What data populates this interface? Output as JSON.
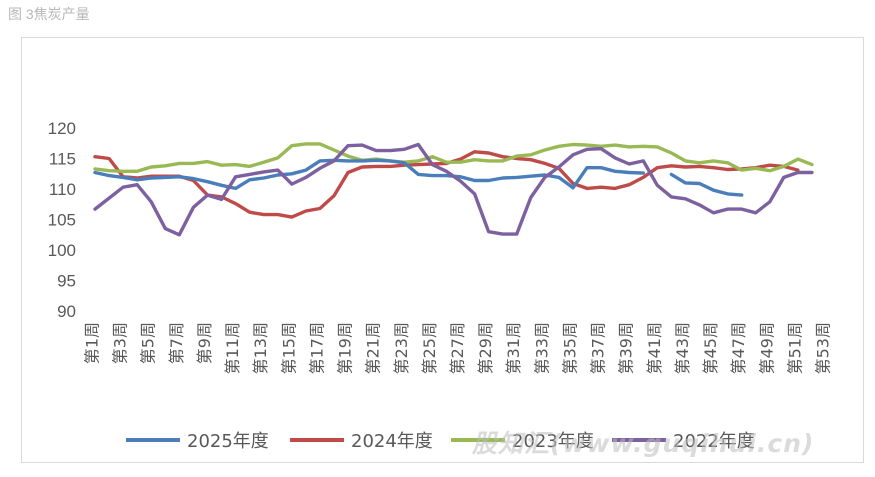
{
  "figure_title": "图 3焦炭产量",
  "watermark": "股知汇(www.guqihui.cn)",
  "chart_data": {
    "type": "line",
    "title": "",
    "xlabel": "",
    "ylabel": "",
    "ylim": [
      90,
      120
    ],
    "yticks": [
      90,
      95,
      100,
      105,
      110,
      115,
      120
    ],
    "grid": false,
    "legend": "bottom",
    "categories": [
      "第1周",
      "第2周",
      "第3周",
      "第4周",
      "第5周",
      "第6周",
      "第7周",
      "第8周",
      "第9周",
      "第10周",
      "第11周",
      "第12周",
      "第13周",
      "第14周",
      "第15周",
      "第16周",
      "第17周",
      "第18周",
      "第19周",
      "第20周",
      "第21周",
      "第22周",
      "第23周",
      "第24周",
      "第25周",
      "第26周",
      "第27周",
      "第28周",
      "第29周",
      "第30周",
      "第31周",
      "第32周",
      "第33周",
      "第34周",
      "第35周",
      "第36周",
      "第37周",
      "第38周",
      "第39周",
      "第40周",
      "第41周",
      "第42周",
      "第43周",
      "第44周",
      "第45周",
      "第46周",
      "第47周",
      "第48周",
      "第49周",
      "第50周",
      "第51周",
      "第52周",
      "第53周"
    ],
    "tick_labels": [
      "第1周",
      "第3周",
      "第5周",
      "第7周",
      "第9周",
      "第11周",
      "第13周",
      "第15周",
      "第17周",
      "第19周",
      "第21周",
      "第23周",
      "第25周",
      "第27周",
      "第29周",
      "第31周",
      "第33周",
      "第35周",
      "第37周",
      "第39周",
      "第41周",
      "第43周",
      "第45周",
      "第47周",
      "第49周",
      "第51周",
      "第53周"
    ],
    "series": [
      {
        "name": "2025年度",
        "color": "#4a7ebb",
        "values": [
          112.7,
          112.2,
          111.9,
          111.5,
          111.8,
          111.9,
          112.0,
          111.7,
          111.2,
          110.6,
          110.1,
          111.5,
          111.8,
          112.3,
          112.5,
          113.1,
          114.6,
          114.7,
          114.6,
          114.6,
          114.7,
          114.6,
          114.3,
          112.4,
          112.2,
          112.2,
          112.0,
          111.4,
          111.4,
          111.8,
          111.9,
          112.1,
          112.3,
          111.9,
          110.2,
          113.5,
          113.5,
          112.9,
          112.7,
          112.6,
          null,
          112.4,
          111.0,
          110.9,
          109.8,
          109.2,
          109.0,
          null,
          null,
          null,
          null,
          null,
          null
        ]
      },
      {
        "name": "2024年度",
        "color": "#be4b48",
        "values": [
          115.3,
          115.0,
          112.0,
          111.8,
          112.1,
          112.1,
          112.1,
          111.4,
          109.0,
          108.7,
          107.6,
          106.2,
          105.8,
          105.8,
          105.4,
          106.4,
          106.8,
          108.9,
          112.7,
          113.6,
          113.7,
          113.7,
          113.9,
          114.0,
          114.1,
          114.2,
          114.9,
          116.1,
          115.9,
          115.3,
          115.0,
          114.8,
          114.2,
          113.4,
          110.9,
          110.1,
          110.3,
          110.1,
          110.7,
          111.9,
          113.5,
          113.8,
          113.6,
          113.7,
          113.5,
          113.2,
          113.3,
          113.5,
          113.9,
          113.7,
          113.1,
          null,
          null
        ]
      },
      {
        "name": "2023年度",
        "color": "#98b954",
        "values": [
          113.3,
          113.0,
          112.9,
          112.9,
          113.6,
          113.8,
          114.2,
          114.2,
          114.5,
          113.9,
          114.0,
          113.7,
          114.4,
          115.1,
          117.1,
          117.4,
          117.4,
          116.4,
          115.4,
          114.7,
          114.9,
          114.6,
          114.4,
          114.6,
          115.3,
          114.4,
          114.4,
          114.8,
          114.6,
          114.6,
          115.4,
          115.6,
          116.4,
          117.0,
          117.3,
          117.2,
          117.0,
          117.2,
          116.9,
          117.0,
          116.9,
          115.9,
          114.6,
          114.3,
          114.6,
          114.3,
          113.1,
          113.4,
          113.0,
          113.7,
          114.9,
          114.0,
          null
        ]
      },
      {
        "name": "2022年度",
        "color": "#7d60a0",
        "values": [
          106.7,
          108.5,
          110.3,
          110.7,
          107.9,
          103.5,
          102.5,
          107.0,
          109.0,
          108.3,
          112.0,
          112.4,
          112.8,
          113.1,
          110.8,
          111.9,
          113.4,
          114.6,
          117.1,
          117.2,
          116.3,
          116.3,
          116.5,
          117.3,
          114.0,
          112.9,
          111.3,
          109.2,
          103.0,
          102.6,
          102.6,
          108.6,
          111.9,
          113.6,
          115.6,
          116.5,
          116.6,
          115.1,
          114.1,
          114.6,
          110.6,
          108.7,
          108.4,
          107.4,
          106.1,
          106.7,
          106.7,
          106.1,
          107.9,
          111.9,
          112.7,
          112.7,
          null
        ]
      }
    ]
  }
}
